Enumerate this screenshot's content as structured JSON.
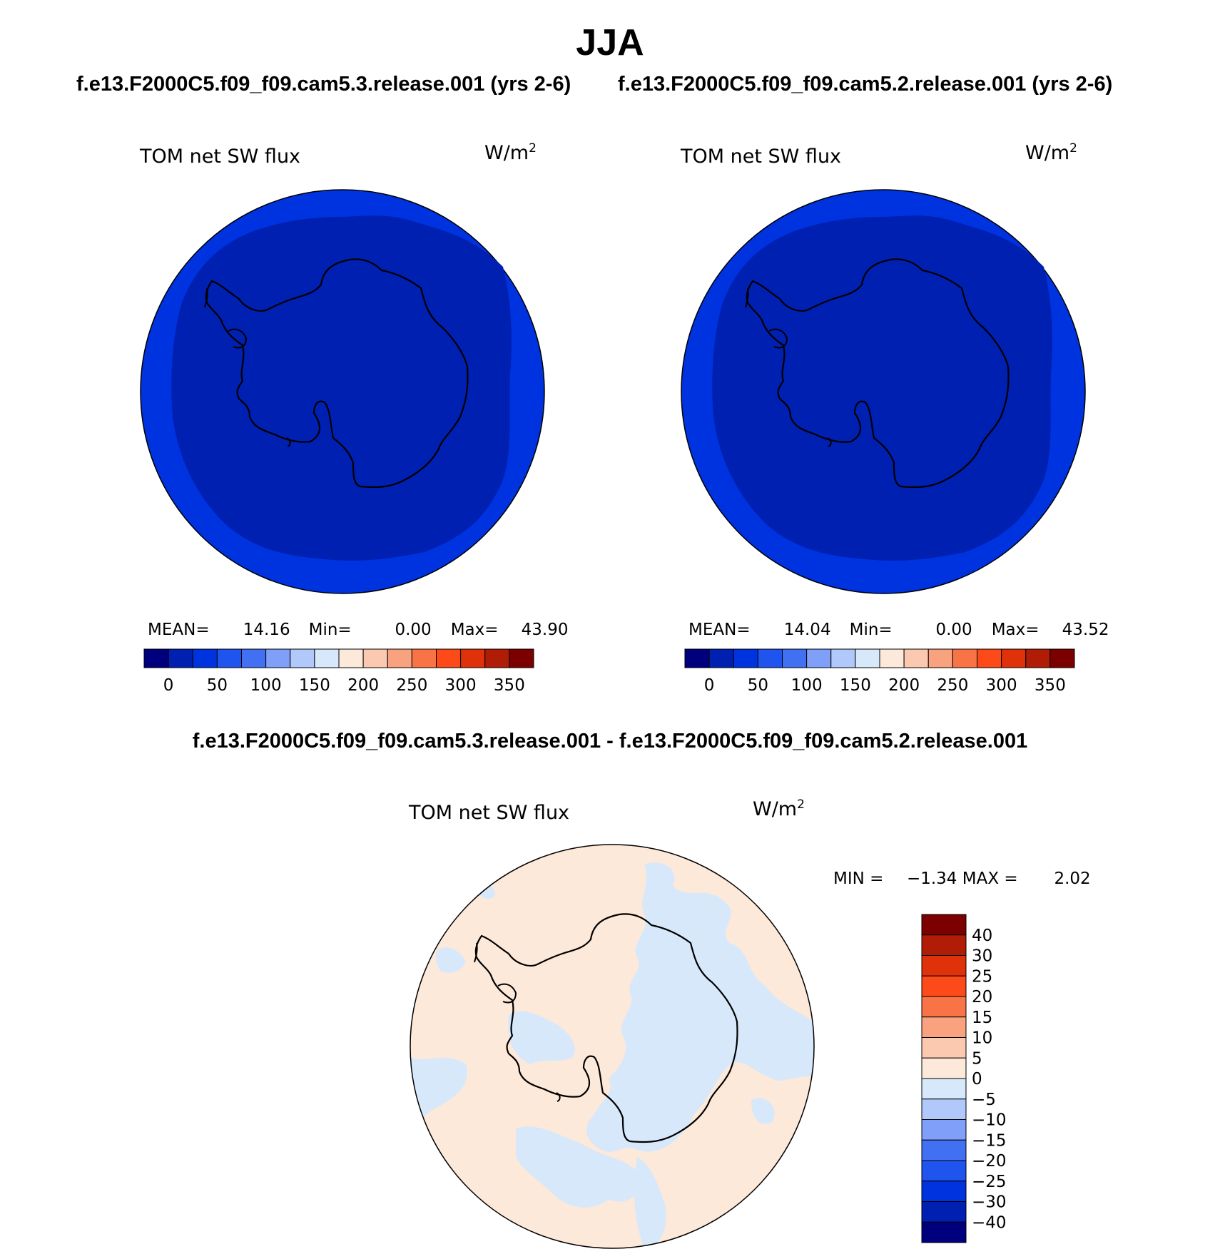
{
  "title": "JJA",
  "panels": [
    {
      "case": "f.e13.F2000C5.f09_f09.cam5.3.release.001 (yrs 2-6)",
      "label": "TOM net SW flux",
      "units": "W/m",
      "units_exp": "2",
      "stats": {
        "mean_label": "MEAN=",
        "mean": "14.16",
        "min_label": "Min=",
        "min": "0.00",
        "max_label": "Max=",
        "max": "43.90"
      }
    },
    {
      "case": "f.e13.F2000C5.f09_f09.cam5.2.release.001 (yrs 2-6)",
      "label": "TOM net SW flux",
      "units": "W/m",
      "units_exp": "2",
      "stats": {
        "mean_label": "MEAN=",
        "mean": "14.04",
        "min_label": "Min=",
        "min": "0.00",
        "max_label": "Max=",
        "max": "43.52"
      }
    }
  ],
  "colorbar": {
    "colors": [
      "#00007f",
      "#0020b2",
      "#0033e0",
      "#1f55ee",
      "#4171f2",
      "#7f9ff8",
      "#b0c8fa",
      "#d7e8fb",
      "#fde9da",
      "#fbc9b0",
      "#f9a27f",
      "#f87447",
      "#fc4a18",
      "#e0320a",
      "#b01c06",
      "#7d0000"
    ],
    "labels": [
      "0",
      "50",
      "100",
      "150",
      "200",
      "250",
      "300",
      "350"
    ]
  },
  "difference": {
    "title": "f.e13.F2000C5.f09_f09.cam5.3.release.001 - f.e13.F2000C5.f09_f09.cam5.2.release.001",
    "label": "TOM net SW flux",
    "units": "W/m",
    "units_exp": "2",
    "min_label": "MIN =",
    "min": "−1.34",
    "max_label": "MAX =",
    "max": "2.02",
    "colorbar": {
      "colors": [
        "#7d0000",
        "#b01c06",
        "#e0320a",
        "#fc4a18",
        "#f87447",
        "#f9a27f",
        "#fbc9b0",
        "#fde9da",
        "#d7e8fb",
        "#b0c8fa",
        "#7f9ff8",
        "#4171f2",
        "#1f55ee",
        "#0033e0",
        "#0020b2",
        "#00007f"
      ],
      "labels": [
        "40",
        "30",
        "25",
        "20",
        "15",
        "10",
        "5",
        "0",
        "−5",
        "−10",
        "−15",
        "−20",
        "−25",
        "−30",
        "−40"
      ]
    }
  },
  "map_colors": {
    "ocean_band": "#0033e0",
    "interior": "#0020b2",
    "diff_positive": "#fde9da",
    "diff_negative": "#d7e8fb",
    "coastline": "#000000"
  }
}
